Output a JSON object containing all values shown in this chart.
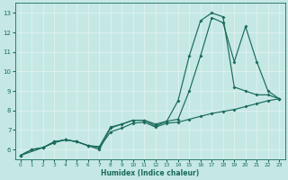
{
  "xlabel": "Humidex (Indice chaleur)",
  "bg_color": "#c5e8e5",
  "grid_color": "#e8f5f5",
  "line_color": "#1a6b5a",
  "xlim": [
    -0.5,
    23.5
  ],
  "ylim": [
    5.5,
    13.5
  ],
  "yticks": [
    6,
    7,
    8,
    9,
    10,
    11,
    12,
    13
  ],
  "xticks": [
    0,
    1,
    2,
    3,
    4,
    5,
    6,
    7,
    8,
    9,
    10,
    11,
    12,
    13,
    14,
    15,
    16,
    17,
    18,
    19,
    20,
    21,
    22,
    23
  ],
  "line1_x": [
    0,
    1,
    2,
    3,
    4,
    5,
    6,
    7,
    8,
    9,
    10,
    11,
    12,
    13,
    14,
    15,
    16,
    17,
    18,
    19,
    20,
    21,
    22,
    23
  ],
  "line1_y": [
    5.7,
    6.0,
    6.1,
    6.4,
    6.5,
    6.4,
    6.2,
    6.15,
    7.15,
    7.3,
    7.5,
    7.5,
    7.2,
    7.45,
    8.5,
    10.8,
    12.6,
    13.0,
    12.8,
    9.2,
    9.0,
    8.8,
    8.8,
    8.6
  ],
  "line2_x": [
    0,
    2,
    3,
    4,
    5,
    6,
    7,
    8,
    9,
    10,
    11,
    12,
    13,
    14,
    15,
    16,
    17,
    18,
    19,
    20,
    21,
    22,
    23
  ],
  "line2_y": [
    5.7,
    6.1,
    6.4,
    6.5,
    6.4,
    6.2,
    6.0,
    7.1,
    7.3,
    7.5,
    7.5,
    7.3,
    7.45,
    7.55,
    9.0,
    10.8,
    12.75,
    12.5,
    10.5,
    12.3,
    10.5,
    9.0,
    8.6
  ],
  "line3_x": [
    0,
    1,
    2,
    3,
    4,
    5,
    6,
    7,
    8,
    9,
    10,
    11,
    12,
    13,
    14,
    15,
    16,
    17,
    18,
    19,
    20,
    21,
    22,
    23
  ],
  "line3_y": [
    5.7,
    6.0,
    6.1,
    6.35,
    6.5,
    6.4,
    6.2,
    6.1,
    6.9,
    7.1,
    7.35,
    7.4,
    7.15,
    7.35,
    7.4,
    7.55,
    7.7,
    7.85,
    7.95,
    8.05,
    8.2,
    8.35,
    8.5,
    8.6
  ]
}
